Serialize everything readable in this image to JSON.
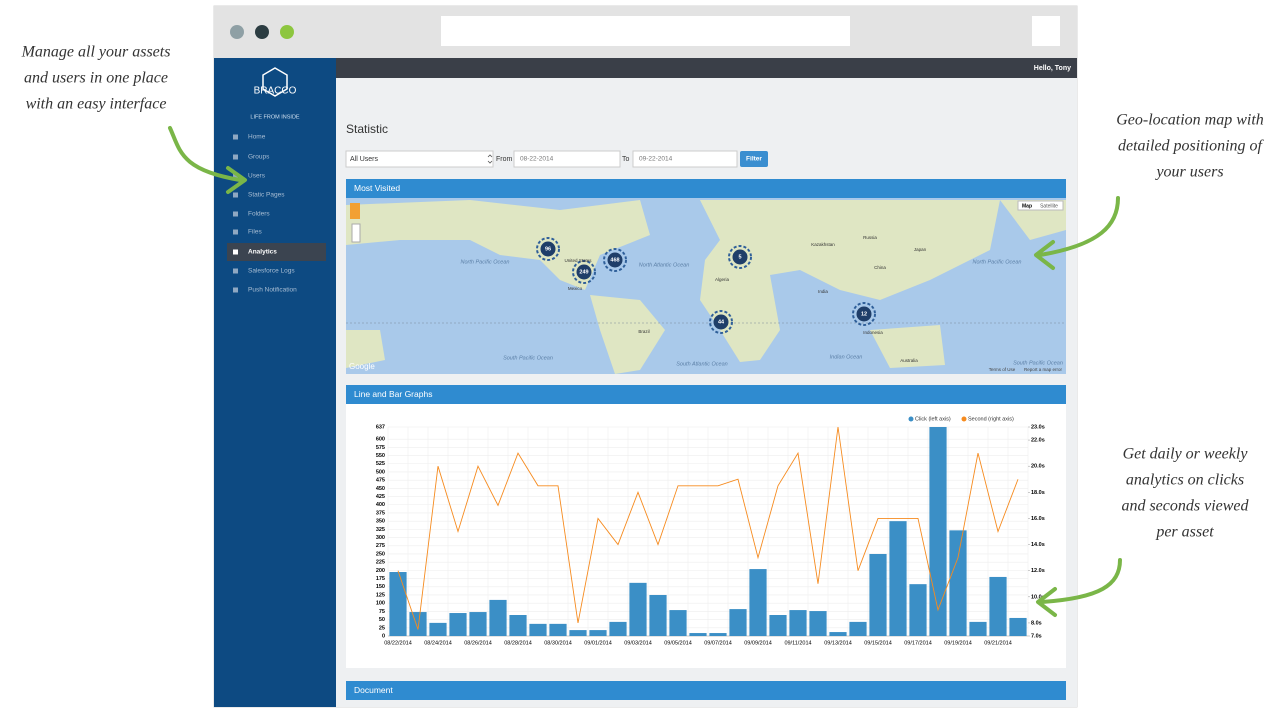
{
  "header": {
    "greeting": "Hello, Tony"
  },
  "sidebar": {
    "logo": "BRACCO",
    "tagline": "LIFE FROM INSIDE",
    "items": [
      "Home",
      "Groups",
      "Users",
      "Static Pages",
      "Folders",
      "Files",
      "Analytics",
      "Salesforce Logs",
      "Push Notification"
    ]
  },
  "page": {
    "title": "Statistic"
  },
  "filters": {
    "user_select": "All Users",
    "from_label": "From",
    "from_date": "08-22-2014",
    "to_label": "To",
    "to_date": "09-22-2014",
    "button": "Filter"
  },
  "panels": [
    "Most Visited",
    "Line and Bar Graphs",
    "Document"
  ],
  "map": {
    "type_buttons": [
      "Map",
      "Satellite"
    ],
    "clusters": [
      96,
      249,
      468,
      5,
      44,
      12
    ],
    "labels": [
      "North Pacific Ocean",
      "North Atlantic Ocean",
      "South Pacific Ocean",
      "South Atlantic Ocean",
      "Indian Ocean",
      "North Pacific Ocean",
      "South Pacific Ocean",
      "United States",
      "Mexico",
      "Brazil",
      "Russia",
      "China",
      "India",
      "Australia",
      "Algeria",
      "Kazakhstan",
      "Indonesia",
      "Japan"
    ],
    "brand": "Google",
    "footer": [
      "Terms of Use",
      "Report a map error"
    ]
  },
  "annotations": [
    [
      "Manage all your assets",
      "and users in one place",
      "with an easy interface"
    ],
    [
      "Geo-location map with",
      "detailed positioning of",
      "your users"
    ],
    [
      "Get daily or weekly",
      "analytics on clicks",
      "and seconds viewed",
      "per asset"
    ]
  ],
  "chart_data": {
    "type": "bar_line",
    "categories": [
      "08/22/2014",
      null,
      "08/24/2014",
      null,
      "08/26/2014",
      null,
      "08/28/2014",
      null,
      "08/30/2014",
      null,
      "09/01/2014",
      null,
      "09/03/2014",
      null,
      "09/05/2014",
      null,
      "09/07/2014",
      null,
      "09/09/2014",
      null,
      "09/11/2014",
      null,
      "09/13/2014",
      null,
      "09/15/2014",
      null,
      "09/17/2014",
      null,
      "09/19/2014",
      null,
      "09/21/2014",
      null
    ],
    "series": [
      {
        "name": "Click (left axis)",
        "color": "#3b8fc6",
        "type": "bar",
        "values": [
          195,
          73,
          40,
          70,
          73,
          110,
          64,
          37,
          37,
          18,
          18,
          43,
          162,
          125,
          79,
          9,
          9,
          82,
          204,
          64,
          79,
          76,
          12,
          43,
          250,
          350,
          158,
          637,
          322,
          43,
          180,
          55
        ]
      },
      {
        "name": "Second (right axis)",
        "color": "#f68b1f",
        "type": "line",
        "axis": "y2",
        "values": [
          12,
          7.5,
          20,
          15,
          20,
          17,
          21,
          18.5,
          18.5,
          8,
          16,
          14,
          18,
          14,
          18.5,
          18.5,
          18.5,
          19,
          13,
          18.5,
          21,
          11,
          23,
          12,
          16,
          16,
          16,
          9,
          13,
          21,
          15,
          19
        ]
      }
    ],
    "ylim": [
      0,
      637
    ],
    "yticks": [
      0,
      25,
      50,
      75,
      100,
      125,
      150,
      175,
      200,
      225,
      250,
      275,
      300,
      325,
      350,
      375,
      400,
      425,
      450,
      475,
      500,
      525,
      550,
      575,
      600,
      637
    ],
    "y2lim": [
      7,
      23
    ],
    "y2ticks": [
      {
        "value": 7,
        "label": "7.0s"
      },
      {
        "value": 8,
        "label": "8.0s"
      },
      {
        "value": 10,
        "label": "10.0s"
      },
      {
        "value": 12,
        "label": "12.0s"
      },
      {
        "value": 14,
        "label": "14.0s"
      },
      {
        "value": 16,
        "label": "16.0s"
      },
      {
        "value": 18,
        "label": "18.0s"
      },
      {
        "value": 20,
        "label": "20.0s"
      },
      {
        "value": 22,
        "label": "22.0s"
      },
      {
        "value": 23,
        "label": "23.0s"
      }
    ],
    "grid": true
  }
}
